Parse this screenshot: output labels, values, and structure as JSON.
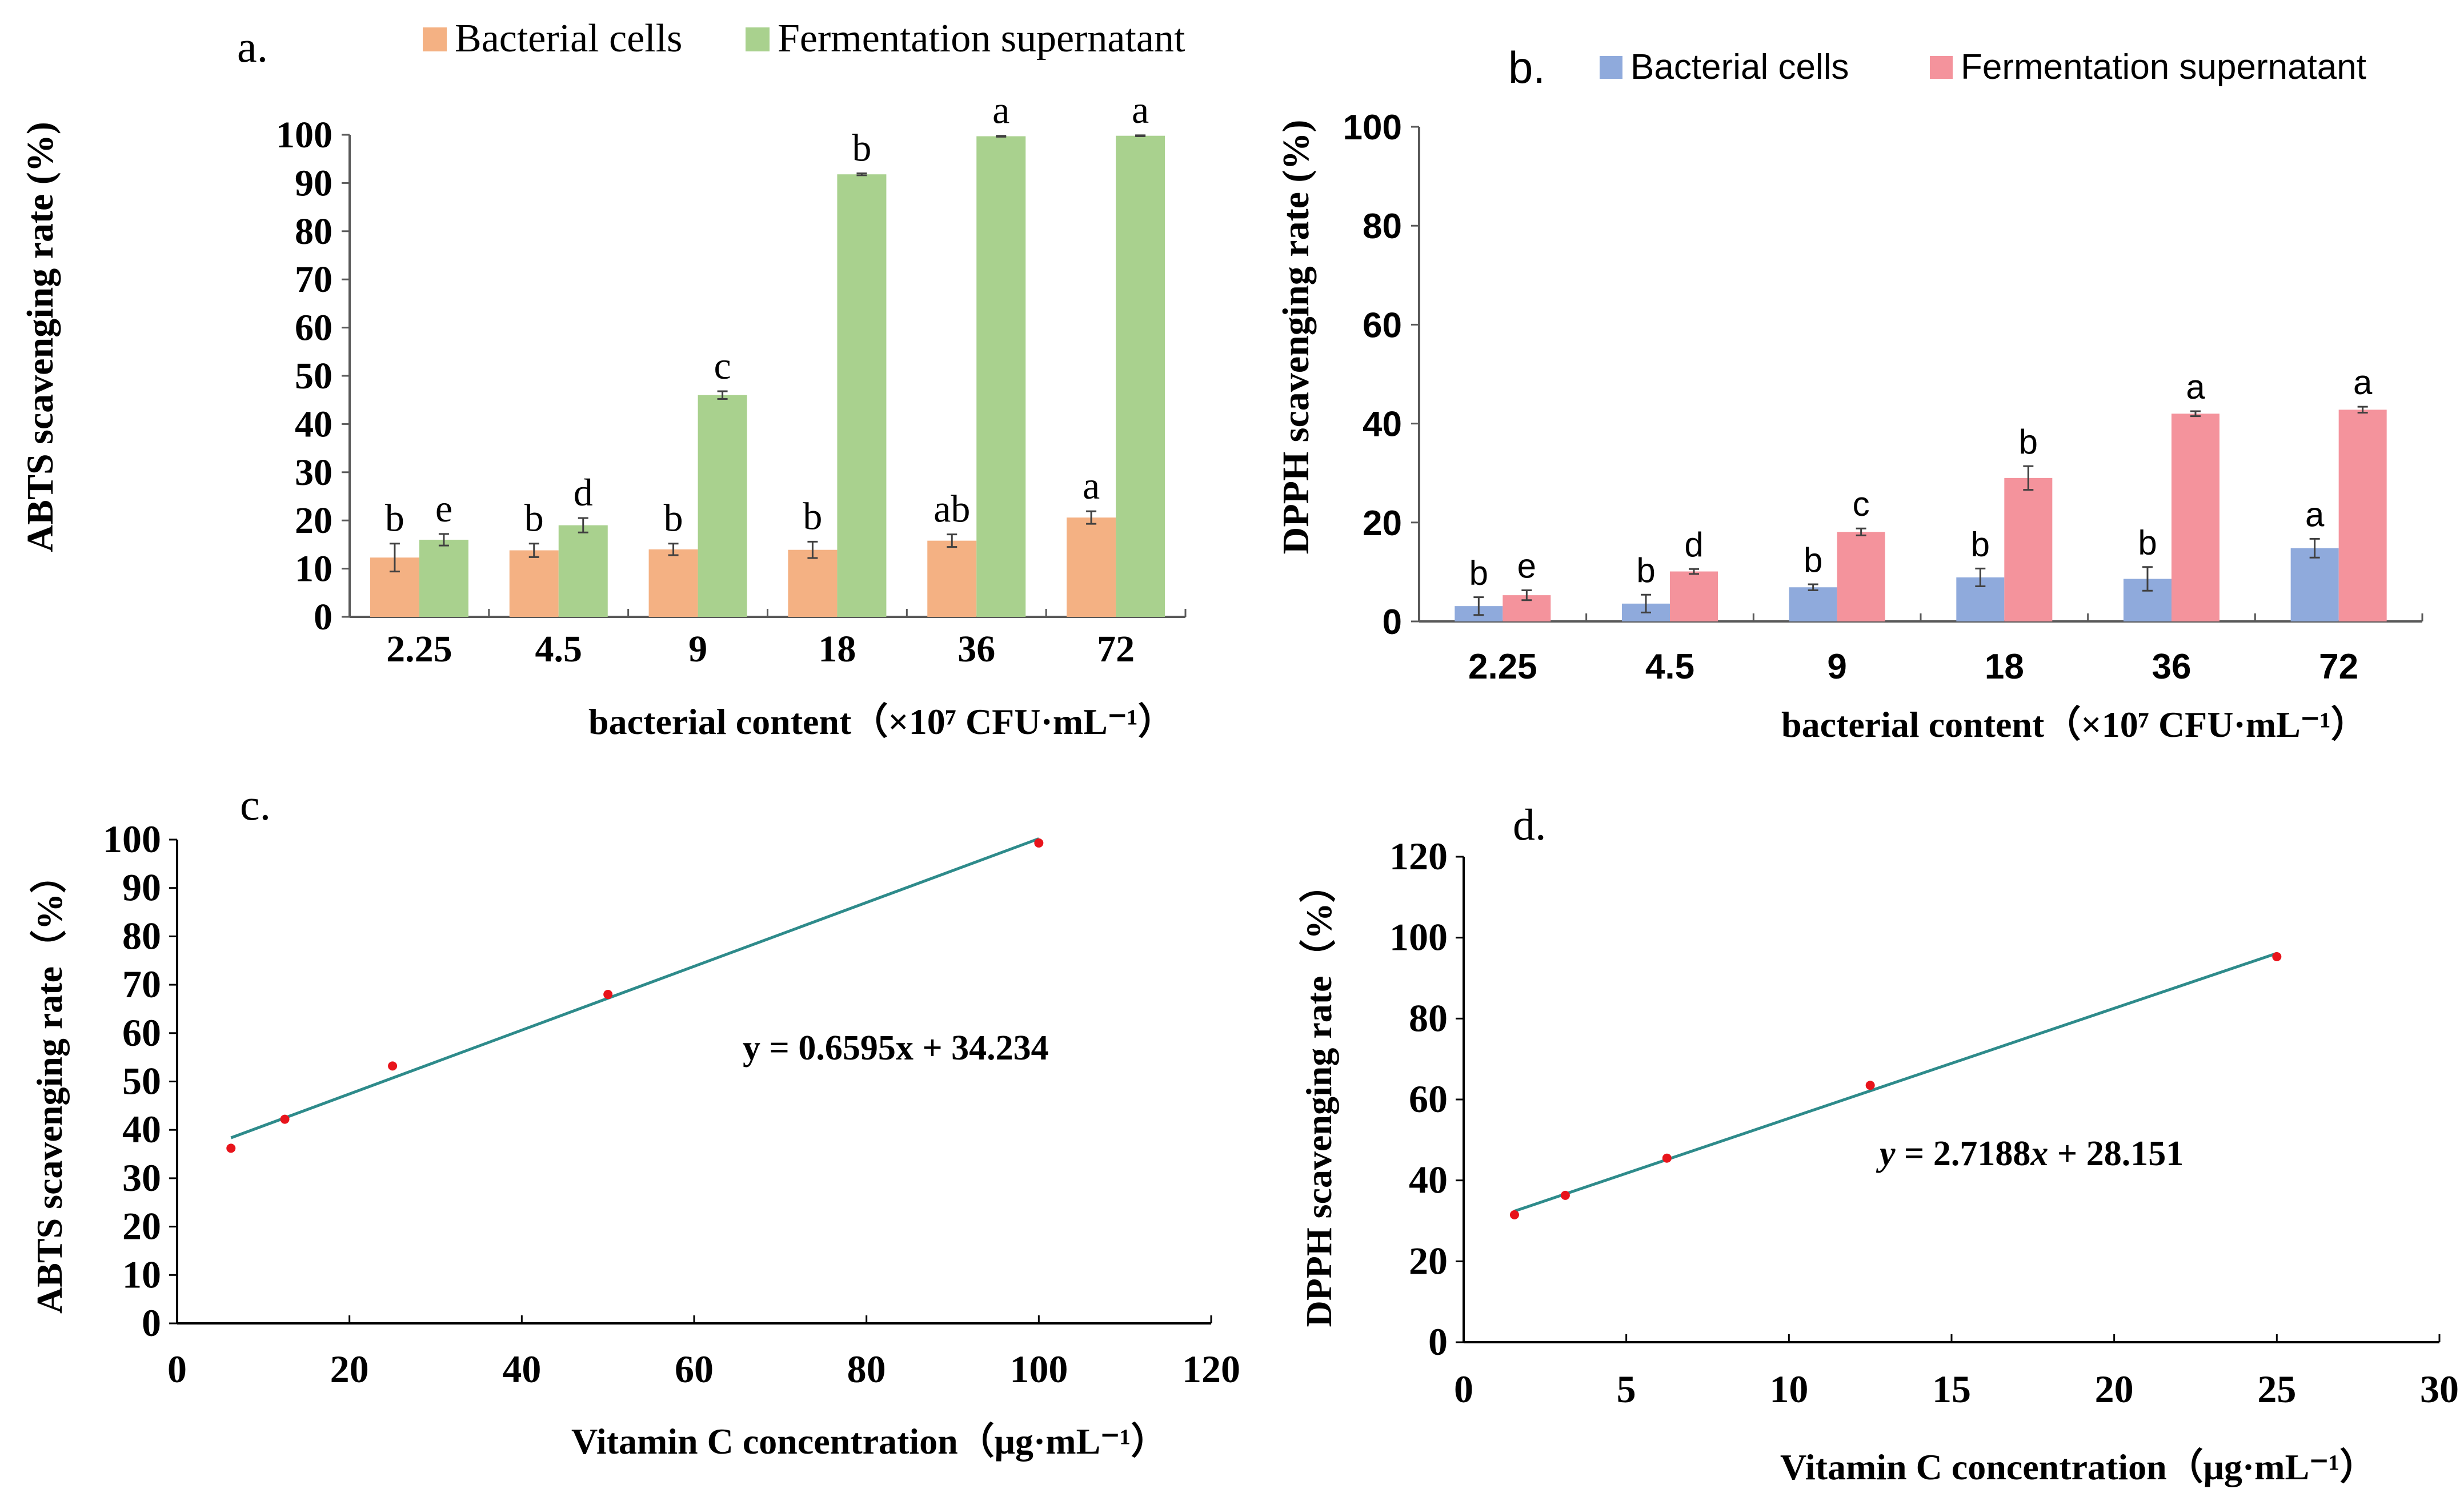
{
  "chart_data": [
    {
      "panel": "a.",
      "type": "bar",
      "title": "",
      "xlabel": "bacterial content（×10⁷ CFU·mL⁻¹）",
      "ylabel": "ABTS scavenging rate (%)",
      "categories": [
        "2.25",
        "4.5",
        "9",
        "18",
        "36",
        "72"
      ],
      "ylim": [
        0,
        100
      ],
      "yticks": [
        0,
        10,
        20,
        30,
        40,
        50,
        60,
        70,
        80,
        90,
        100
      ],
      "legend_position": "top",
      "grid": false,
      "series": [
        {
          "name": "Bacterial cells",
          "color": "#F4B183",
          "values": [
            12.3,
            13.8,
            14.0,
            13.9,
            15.8,
            20.6
          ],
          "errors": [
            2.9,
            1.4,
            1.2,
            1.7,
            1.3,
            1.3
          ],
          "letters": [
            "b",
            "b",
            "b",
            "b",
            "ab",
            "a"
          ]
        },
        {
          "name": "Fermentation supernatant",
          "color": "#A9D18E",
          "values": [
            16.0,
            19.0,
            46.0,
            91.8,
            99.7,
            99.8
          ],
          "errors": [
            1.2,
            1.5,
            0.8,
            0.2,
            0.1,
            0.1
          ],
          "letters": [
            "e",
            "d",
            "c",
            "b",
            "a",
            "a"
          ]
        }
      ]
    },
    {
      "panel": "b.",
      "type": "bar",
      "title": "",
      "xlabel": "bacterial content（×10⁷  CFU·mL⁻¹）",
      "ylabel": "DPPH scavenging rate (%)",
      "categories": [
        "2.25",
        "4.5",
        "9",
        "18",
        "36",
        "72"
      ],
      "ylim": [
        0,
        100
      ],
      "yticks": [
        0,
        20,
        40,
        60,
        80,
        100
      ],
      "legend_position": "top",
      "grid": false,
      "series": [
        {
          "name": "Bacterial cells",
          "color": "#8FAADC",
          "values": [
            3.1,
            3.6,
            6.9,
            8.9,
            8.6,
            14.8
          ],
          "errors": [
            1.8,
            1.8,
            0.6,
            1.8,
            2.4,
            1.9
          ],
          "letters": [
            "b",
            "b",
            "b",
            "b",
            "b",
            "a"
          ]
        },
        {
          "name": "Fermentation supernatant",
          "color": "#F4939C",
          "values": [
            5.3,
            10.1,
            18.1,
            29.0,
            42.0,
            42.8
          ],
          "errors": [
            1.0,
            0.5,
            0.7,
            2.4,
            0.5,
            0.6
          ],
          "letters": [
            "e",
            "d",
            "c",
            "b",
            "a",
            "a"
          ]
        }
      ]
    },
    {
      "panel": "c.",
      "type": "scatter",
      "title": "",
      "xlabel": "Vitamin C concentration（μg·mL⁻¹）",
      "ylabel": "ABTS scavenging rate（%）",
      "xlim": [
        0,
        120
      ],
      "ylim": [
        0,
        100
      ],
      "xticks": [
        0,
        20,
        40,
        60,
        80,
        100,
        120
      ],
      "yticks": [
        0,
        10,
        20,
        30,
        40,
        50,
        60,
        70,
        80,
        90,
        100
      ],
      "grid": false,
      "series": [
        {
          "name": "Vitamin C",
          "color": "#E8141B",
          "x": [
            6.25,
            12.5,
            25,
            50,
            100
          ],
          "y": [
            36.2,
            42.2,
            53.2,
            68.0,
            99.3
          ]
        }
      ],
      "trendline": {
        "slope": 0.6595,
        "intercept": 34.234,
        "x_range": [
          6.25,
          100
        ],
        "color": "#2E8B8B"
      },
      "annotation": "y = 0.6595x + 34.234"
    },
    {
      "panel": "d.",
      "type": "scatter",
      "title": "",
      "xlabel": "Vitamin C concentration（μg·mL⁻¹）",
      "ylabel": "DPPH scavenging rate（%）",
      "xlim": [
        0,
        30
      ],
      "ylim": [
        0,
        120
      ],
      "xticks": [
        0,
        5,
        10,
        15,
        20,
        25,
        30
      ],
      "yticks": [
        0,
        20,
        40,
        60,
        80,
        100,
        120
      ],
      "grid": false,
      "series": [
        {
          "name": "Vitamin C",
          "color": "#E8141B",
          "x": [
            1.5625,
            3.125,
            6.25,
            12.5,
            25
          ],
          "y": [
            31.5,
            36.3,
            45.5,
            63.5,
            95.3
          ]
        }
      ],
      "trendline": {
        "slope": 2.7188,
        "intercept": 28.151,
        "x_range": [
          1.5625,
          25
        ],
        "color": "#2E8B8B"
      },
      "annotation_parts": {
        "y": "y",
        "eq": " = 2.7188",
        "x": "x",
        "rest": " + 28.151"
      }
    }
  ]
}
